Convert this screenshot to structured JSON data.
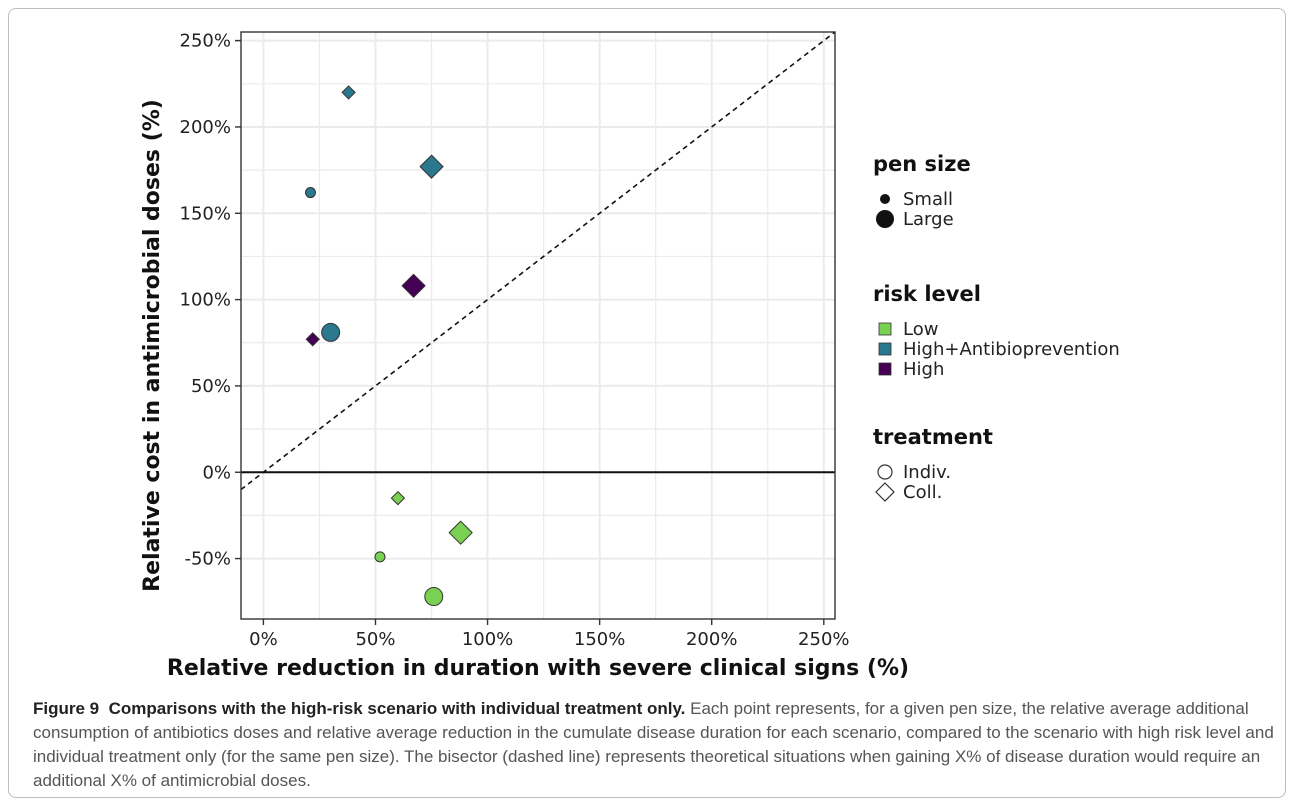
{
  "chart_data": {
    "type": "scatter",
    "xlabel": "Relative reduction in duration with severe clinical signs (%)",
    "ylabel": "Relative cost in antimicrobial doses (%)",
    "xlim": [
      -10,
      255
    ],
    "ylim": [
      -85,
      255
    ],
    "x_ticks": [
      0,
      50,
      100,
      150,
      200,
      250
    ],
    "y_ticks": [
      -50,
      0,
      50,
      100,
      150,
      200,
      250
    ],
    "x_tick_labels": [
      "0%",
      "50%",
      "100%",
      "150%",
      "200%",
      "250%"
    ],
    "y_tick_labels": [
      "-50%",
      "0%",
      "50%",
      "100%",
      "150%",
      "200%",
      "250%"
    ],
    "grid": true,
    "reference_lines": [
      {
        "type": "bisector",
        "style": "dashed"
      },
      {
        "type": "horizontal",
        "y": 0,
        "style": "solid"
      }
    ],
    "legend_placement": "right",
    "legends": [
      {
        "title": "pen size",
        "entries": [
          {
            "label": "Small",
            "shape": "circle",
            "size": "small"
          },
          {
            "label": "Large",
            "shape": "circle",
            "size": "large"
          }
        ]
      },
      {
        "title": "risk level",
        "entries": [
          {
            "label": "Low",
            "color": "#7ad151"
          },
          {
            "label": "High+Antibioprevention",
            "color": "#2a788e"
          },
          {
            "label": "High",
            "color": "#440154"
          }
        ]
      },
      {
        "title": "treatment",
        "entries": [
          {
            "label": "Indiv.",
            "shape": "circle"
          },
          {
            "label": "Coll.",
            "shape": "diamond"
          }
        ]
      }
    ],
    "points": [
      {
        "x": 38,
        "y": 220,
        "pen_size": "Small",
        "risk_level": "High+Antibioprevention",
        "treatment": "Coll."
      },
      {
        "x": 75,
        "y": 177,
        "pen_size": "Large",
        "risk_level": "High+Antibioprevention",
        "treatment": "Coll."
      },
      {
        "x": 21,
        "y": 162,
        "pen_size": "Small",
        "risk_level": "High+Antibioprevention",
        "treatment": "Indiv."
      },
      {
        "x": 30,
        "y": 81,
        "pen_size": "Large",
        "risk_level": "High+Antibioprevention",
        "treatment": "Indiv."
      },
      {
        "x": 67,
        "y": 108,
        "pen_size": "Large",
        "risk_level": "High",
        "treatment": "Coll."
      },
      {
        "x": 22,
        "y": 77,
        "pen_size": "Small",
        "risk_level": "High",
        "treatment": "Coll."
      },
      {
        "x": 60,
        "y": -15,
        "pen_size": "Small",
        "risk_level": "Low",
        "treatment": "Coll."
      },
      {
        "x": 88,
        "y": -35,
        "pen_size": "Large",
        "risk_level": "Low",
        "treatment": "Coll."
      },
      {
        "x": 52,
        "y": -49,
        "pen_size": "Small",
        "risk_level": "Low",
        "treatment": "Indiv."
      },
      {
        "x": 76,
        "y": -72,
        "pen_size": "Large",
        "risk_level": "Low",
        "treatment": "Indiv."
      }
    ]
  },
  "colors": {
    "Low": "#7ad151",
    "High+Antibioprevention": "#2a788e",
    "High": "#440154",
    "grid": "#ebebeb",
    "panel_border": "#333333"
  },
  "caption": {
    "label": "Figure 9",
    "title": "Comparisons with the high-risk scenario with individual treatment only.",
    "text": "Each point represents, for a given pen size, the relative average additional consumption of antibiotics doses and relative average reduction in the cumulate disease duration for each scenario, compared to the scenario with high risk level and individual treatment only (for the same pen size). The bisector (dashed line) represents theoretical situations when gaining X% of disease duration would require an additional X% of antimicrobial doses."
  }
}
